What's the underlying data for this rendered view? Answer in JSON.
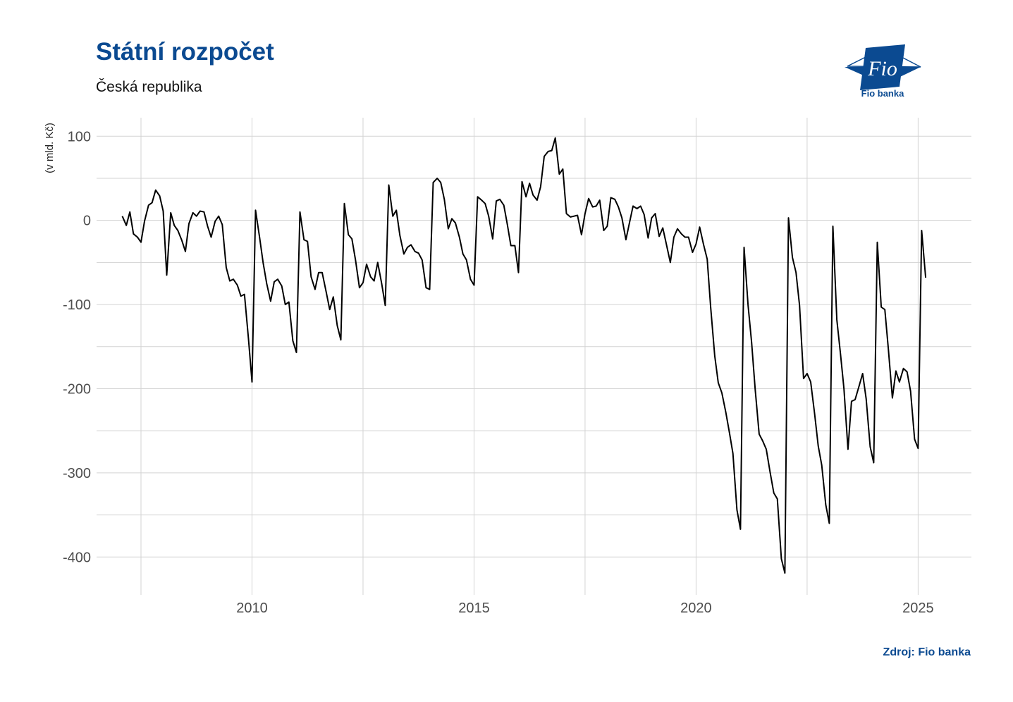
{
  "header": {
    "title": "Státní rozpočet",
    "subtitle": "Česká republika"
  },
  "logo": {
    "mark_text": "Fio",
    "caption": "Fio banka"
  },
  "footer": {
    "source": "Zdroj: Fio banka"
  },
  "colors": {
    "brand": "#0b4a91",
    "line": "#000000",
    "grid": "#d3d3d3"
  },
  "chart_data": {
    "type": "line",
    "title": "Státní rozpočet",
    "subtitle": "Česká republika",
    "ylabel": "(v mld. Kč)",
    "xlabel": "",
    "xlim": [
      2006.5,
      2026.2
    ],
    "ylim": [
      -445,
      122
    ],
    "x_ticks": [
      2010,
      2015,
      2020,
      2025
    ],
    "y_ticks": [
      100,
      0,
      -100,
      -200,
      -300,
      -400
    ],
    "y_tick_labels": [
      "100",
      "0",
      "-100",
      "-200",
      "-300",
      "-400"
    ],
    "grid": true,
    "series": [
      {
        "points": [
          [
            2007.08,
            5
          ],
          [
            2007.17,
            -6
          ],
          [
            2007.25,
            10
          ],
          [
            2007.33,
            -16
          ],
          [
            2007.42,
            -20
          ],
          [
            2007.5,
            -26
          ],
          [
            2007.58,
            -1
          ],
          [
            2007.67,
            18
          ],
          [
            2007.75,
            21
          ],
          [
            2007.83,
            36
          ],
          [
            2007.92,
            29
          ],
          [
            2008.0,
            11
          ],
          [
            2008.08,
            -65
          ],
          [
            2008.17,
            9
          ],
          [
            2008.25,
            -6
          ],
          [
            2008.33,
            -12
          ],
          [
            2008.42,
            -24
          ],
          [
            2008.5,
            -37
          ],
          [
            2008.58,
            -4
          ],
          [
            2008.67,
            9
          ],
          [
            2008.75,
            5
          ],
          [
            2008.83,
            11
          ],
          [
            2008.92,
            10
          ],
          [
            2009.0,
            -7
          ],
          [
            2009.08,
            -20
          ],
          [
            2009.17,
            -1
          ],
          [
            2009.25,
            5
          ],
          [
            2009.33,
            -5
          ],
          [
            2009.42,
            -56
          ],
          [
            2009.5,
            -72
          ],
          [
            2009.58,
            -70
          ],
          [
            2009.67,
            -77
          ],
          [
            2009.75,
            -90
          ],
          [
            2009.83,
            -88
          ],
          [
            2009.92,
            -140
          ],
          [
            2010.0,
            -192
          ],
          [
            2010.08,
            12
          ],
          [
            2010.17,
            -20
          ],
          [
            2010.25,
            -50
          ],
          [
            2010.33,
            -75
          ],
          [
            2010.42,
            -96
          ],
          [
            2010.5,
            -73
          ],
          [
            2010.58,
            -70
          ],
          [
            2010.67,
            -78
          ],
          [
            2010.75,
            -100
          ],
          [
            2010.83,
            -97
          ],
          [
            2010.92,
            -143
          ],
          [
            2011.0,
            -157
          ],
          [
            2011.08,
            10
          ],
          [
            2011.17,
            -23
          ],
          [
            2011.25,
            -25
          ],
          [
            2011.33,
            -67
          ],
          [
            2011.42,
            -82
          ],
          [
            2011.5,
            -62
          ],
          [
            2011.58,
            -62
          ],
          [
            2011.67,
            -85
          ],
          [
            2011.75,
            -106
          ],
          [
            2011.83,
            -91
          ],
          [
            2011.92,
            -125
          ],
          [
            2012.0,
            -142
          ],
          [
            2012.08,
            20
          ],
          [
            2012.17,
            -17
          ],
          [
            2012.25,
            -22
          ],
          [
            2012.33,
            -47
          ],
          [
            2012.42,
            -80
          ],
          [
            2012.5,
            -74
          ],
          [
            2012.58,
            -52
          ],
          [
            2012.67,
            -67
          ],
          [
            2012.75,
            -72
          ],
          [
            2012.83,
            -50
          ],
          [
            2012.92,
            -75
          ],
          [
            2013.0,
            -101
          ],
          [
            2013.08,
            42
          ],
          [
            2013.17,
            5
          ],
          [
            2013.25,
            12
          ],
          [
            2013.33,
            -18
          ],
          [
            2013.42,
            -40
          ],
          [
            2013.5,
            -32
          ],
          [
            2013.58,
            -29
          ],
          [
            2013.67,
            -37
          ],
          [
            2013.75,
            -39
          ],
          [
            2013.83,
            -47
          ],
          [
            2013.92,
            -80
          ],
          [
            2014.0,
            -82
          ],
          [
            2014.08,
            45
          ],
          [
            2014.17,
            50
          ],
          [
            2014.25,
            45
          ],
          [
            2014.33,
            25
          ],
          [
            2014.42,
            -10
          ],
          [
            2014.5,
            2
          ],
          [
            2014.58,
            -3
          ],
          [
            2014.67,
            -20
          ],
          [
            2014.75,
            -40
          ],
          [
            2014.83,
            -47
          ],
          [
            2014.92,
            -70
          ],
          [
            2015.0,
            -77
          ],
          [
            2015.08,
            28
          ],
          [
            2015.17,
            24
          ],
          [
            2015.25,
            20
          ],
          [
            2015.33,
            5
          ],
          [
            2015.42,
            -22
          ],
          [
            2015.5,
            23
          ],
          [
            2015.58,
            25
          ],
          [
            2015.67,
            18
          ],
          [
            2015.75,
            -5
          ],
          [
            2015.83,
            -30
          ],
          [
            2015.92,
            -30
          ],
          [
            2016.0,
            -62
          ],
          [
            2016.08,
            46
          ],
          [
            2016.17,
            28
          ],
          [
            2016.25,
            44
          ],
          [
            2016.33,
            30
          ],
          [
            2016.42,
            24
          ],
          [
            2016.5,
            40
          ],
          [
            2016.58,
            76
          ],
          [
            2016.67,
            82
          ],
          [
            2016.75,
            83
          ],
          [
            2016.83,
            98
          ],
          [
            2016.92,
            55
          ],
          [
            2017.0,
            61
          ],
          [
            2017.08,
            8
          ],
          [
            2017.17,
            4
          ],
          [
            2017.25,
            5
          ],
          [
            2017.33,
            6
          ],
          [
            2017.42,
            -17
          ],
          [
            2017.5,
            8
          ],
          [
            2017.58,
            26
          ],
          [
            2017.67,
            16
          ],
          [
            2017.75,
            17
          ],
          [
            2017.83,
            24
          ],
          [
            2017.92,
            -12
          ],
          [
            2018.0,
            -7
          ],
          [
            2018.08,
            27
          ],
          [
            2018.17,
            25
          ],
          [
            2018.25,
            16
          ],
          [
            2018.33,
            3
          ],
          [
            2018.42,
            -23
          ],
          [
            2018.5,
            -3
          ],
          [
            2018.58,
            17
          ],
          [
            2018.67,
            14
          ],
          [
            2018.75,
            17
          ],
          [
            2018.83,
            7
          ],
          [
            2018.92,
            -21
          ],
          [
            2019.0,
            3
          ],
          [
            2019.08,
            8
          ],
          [
            2019.17,
            -19
          ],
          [
            2019.25,
            -9
          ],
          [
            2019.33,
            -28
          ],
          [
            2019.42,
            -50
          ],
          [
            2019.5,
            -20
          ],
          [
            2019.58,
            -10
          ],
          [
            2019.67,
            -16
          ],
          [
            2019.75,
            -20
          ],
          [
            2019.83,
            -20
          ],
          [
            2019.92,
            -38
          ],
          [
            2020.0,
            -28
          ],
          [
            2020.08,
            -8
          ],
          [
            2020.17,
            -29
          ],
          [
            2020.25,
            -46
          ],
          [
            2020.33,
            -104
          ],
          [
            2020.42,
            -161
          ],
          [
            2020.5,
            -193
          ],
          [
            2020.58,
            -205
          ],
          [
            2020.67,
            -228
          ],
          [
            2020.75,
            -252
          ],
          [
            2020.83,
            -277
          ],
          [
            2020.92,
            -344
          ],
          [
            2021.0,
            -367
          ],
          [
            2021.08,
            -32
          ],
          [
            2021.17,
            -100
          ],
          [
            2021.25,
            -145
          ],
          [
            2021.33,
            -200
          ],
          [
            2021.42,
            -254
          ],
          [
            2021.5,
            -262
          ],
          [
            2021.58,
            -272
          ],
          [
            2021.67,
            -300
          ],
          [
            2021.75,
            -324
          ],
          [
            2021.83,
            -331
          ],
          [
            2021.92,
            -402
          ],
          [
            2022.0,
            -419
          ],
          [
            2022.08,
            3
          ],
          [
            2022.17,
            -44
          ],
          [
            2022.25,
            -62
          ],
          [
            2022.33,
            -101
          ],
          [
            2022.42,
            -188
          ],
          [
            2022.5,
            -182
          ],
          [
            2022.58,
            -192
          ],
          [
            2022.67,
            -230
          ],
          [
            2022.75,
            -268
          ],
          [
            2022.83,
            -291
          ],
          [
            2022.92,
            -338
          ],
          [
            2023.0,
            -360
          ],
          [
            2023.08,
            -7
          ],
          [
            2023.17,
            -118
          ],
          [
            2023.25,
            -158
          ],
          [
            2023.33,
            -200
          ],
          [
            2023.42,
            -272
          ],
          [
            2023.5,
            -215
          ],
          [
            2023.58,
            -213
          ],
          [
            2023.67,
            -197
          ],
          [
            2023.75,
            -182
          ],
          [
            2023.83,
            -212
          ],
          [
            2023.92,
            -269
          ],
          [
            2024.0,
            -288
          ],
          [
            2024.08,
            -26
          ],
          [
            2024.17,
            -103
          ],
          [
            2024.25,
            -106
          ],
          [
            2024.33,
            -153
          ],
          [
            2024.42,
            -211
          ],
          [
            2024.5,
            -179
          ],
          [
            2024.58,
            -192
          ],
          [
            2024.67,
            -176
          ],
          [
            2024.75,
            -180
          ],
          [
            2024.83,
            -203
          ],
          [
            2024.92,
            -260
          ],
          [
            2025.0,
            -271
          ],
          [
            2025.08,
            -12
          ],
          [
            2025.17,
            -68
          ]
        ]
      }
    ]
  }
}
